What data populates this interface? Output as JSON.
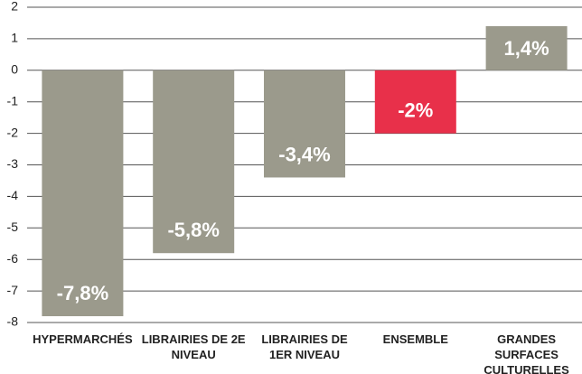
{
  "chart_data": {
    "type": "bar",
    "categories": [
      "HYPERMARCHÉS",
      "LIBRAIRIES DE 2E NIVEAU",
      "LIBRAIRIES DE 1ER NIVEAU",
      "ENSEMBLE",
      "GRANDES SURFACES CULTURELLES"
    ],
    "values": [
      -7.8,
      -5.8,
      -3.4,
      -2,
      1.4
    ],
    "value_labels": [
      "-7,8%",
      "-5,8%",
      "-3,4%",
      "-2%",
      "1,4%"
    ],
    "colors": [
      "#9b9a8c",
      "#9b9a8c",
      "#9b9a8c",
      "#e8304a",
      "#9b9a8c"
    ],
    "ylim": [
      -8,
      2
    ],
    "yticks": [
      -8,
      -7,
      -6,
      -5,
      -4,
      -3,
      -2,
      -1,
      0,
      1,
      2
    ],
    "grid": true
  }
}
